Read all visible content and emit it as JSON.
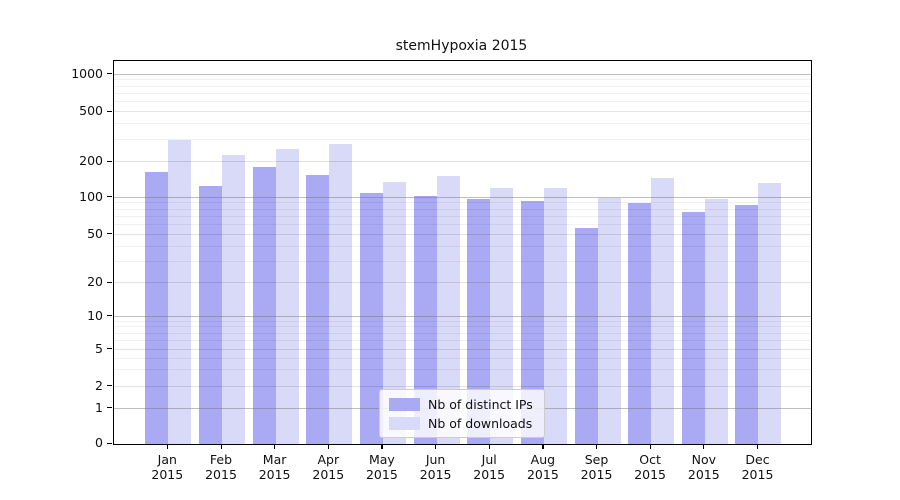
{
  "figure": {
    "title": "stemHypoxia 2015"
  },
  "chart_data": {
    "type": "bar",
    "title": "stemHypoxia 2015",
    "categories": [
      "Jan 2015",
      "Feb 2015",
      "Mar 2015",
      "Apr 2015",
      "May 2015",
      "Jun 2015",
      "Jul 2015",
      "Aug 2015",
      "Sep 2015",
      "Oct 2015",
      "Nov 2015",
      "Dec 2015"
    ],
    "series": [
      {
        "name": "Nb of distinct IPs",
        "color": "#a9a9f4",
        "values": [
          165,
          125,
          183,
          156,
          110,
          103,
          98,
          94,
          57,
          91,
          77,
          87
        ]
      },
      {
        "name": "Nb of downloads",
        "color": "#d9d9f8",
        "values": [
          300,
          230,
          255,
          280,
          135,
          152,
          121,
          120,
          100,
          148,
          98,
          133
        ]
      }
    ],
    "xlabel": "",
    "ylabel": "",
    "y_ticks": [
      0,
      1,
      2,
      5,
      10,
      20,
      50,
      100,
      200,
      500,
      1000
    ],
    "y_minor_gridlines": [
      3,
      4,
      6,
      7,
      8,
      9,
      30,
      40,
      60,
      70,
      80,
      90,
      300,
      400,
      600,
      700,
      800,
      900
    ],
    "y_scale": "symlog",
    "ylim": [
      0,
      1300
    ],
    "grid": true,
    "legend_position": "lower-center"
  }
}
